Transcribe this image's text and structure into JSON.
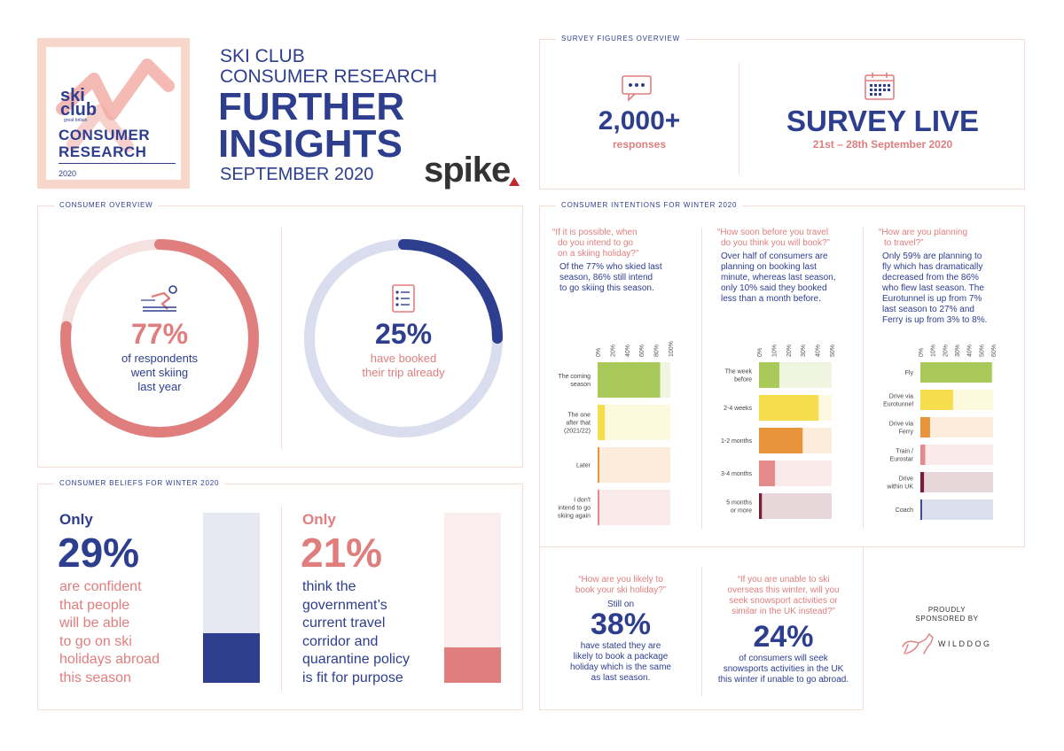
{
  "colors": {
    "navy": "#2d3e8f",
    "coral": "#e07e7e",
    "peach": "#f7d6cb",
    "light_blue": "#d9dded",
    "light_coral": "#f5e1e0",
    "green": "#a9c95a",
    "yellow": "#f6dd4d",
    "orange": "#e8943a",
    "pink": "#e48a8a",
    "maroon": "#7a1f36",
    "blue_bar": "#3a4b9c"
  },
  "logo": {
    "word1": "ski",
    "word2": "club",
    "word3": "great britain",
    "line1": "CONSUMER",
    "line2": "RESEARCH",
    "year": "2020"
  },
  "header": {
    "line1": "SKI CLUB",
    "line2": "CONSUMER RESEARCH",
    "title1": "FURTHER",
    "title2": "INSIGHTS",
    "date": "SEPTEMBER 2020",
    "brand": "spike"
  },
  "survey": {
    "label": "SURVEY FIGURES OVERVIEW",
    "responses_value": "2,000+",
    "responses_label": "responses",
    "live_title": "SURVEY LIVE",
    "live_dates": "21st – 28th September 2020"
  },
  "overview": {
    "label": "CONSUMER OVERVIEW",
    "stat1_value": "77%",
    "stat1_text1": "of respondents",
    "stat1_text2": "went skiing",
    "stat1_text3": "last year",
    "stat2_value": "25%",
    "stat2_text1": "have booked",
    "stat2_text2": "their trip already"
  },
  "beliefs": {
    "label": "CONSUMER BELIEFS FOR WINTER 2020",
    "b1_only": "Only",
    "b1_value": "29%",
    "b1_lines": [
      "are confident",
      "that people",
      "will be able",
      "to go on ski",
      "holidays abroad",
      "this season"
    ],
    "b2_only": "Only",
    "b2_value": "21%",
    "b2_lines": [
      "think the",
      "government’s",
      "current travel",
      "corridor and",
      "quarantine policy",
      "is fit for purpose"
    ]
  },
  "intentions": {
    "label": "CONSUMER INTENTIONS FOR WINTER 2020",
    "q1": [
      "“If it is possible, when",
      "do you intend to go",
      "on a skiing holiday?”"
    ],
    "a1": [
      "Of the 77% who skied last",
      "season, 86% still intend",
      "to go skiing this season."
    ],
    "q2": [
      "“How soon before you travel",
      "do you think you will book?”"
    ],
    "a2": [
      "Over half of consumers are",
      "planning on booking last",
      "minute, whereas last season,",
      "only 10% said they booked",
      "less than a month before."
    ],
    "q3": [
      "“How are you planning",
      "to travel?”"
    ],
    "a3": [
      "Only 59% are planning to",
      "fly which has dramatically",
      "decreased from the 86%",
      "who flew last season. The",
      "Eurotunnel is up from 7%",
      "last season to 27% and",
      "Ferry is up from 3% to 8%."
    ]
  },
  "bottom": {
    "q4": [
      "“How are you likely to",
      "book your ski holiday?”"
    ],
    "still_on": "Still on",
    "value4": "38%",
    "a4": [
      "have stated they are",
      "likely to book a package",
      "holiday which is the same",
      "as last season."
    ],
    "q5": [
      "“If you are unable to ski",
      "overseas this winter, will you",
      "seek snowsport activities or",
      "similar in the UK instead?”"
    ],
    "value5": "24%",
    "a5": [
      "of consumers will seek",
      "snowsports activities in the UK",
      "this winter if unable to go abroad."
    ]
  },
  "sponsor": {
    "line1": "PROUDLY",
    "line2": "SPONSORED BY",
    "name": "WILDDOG"
  },
  "chart_data": [
    {
      "type": "bar",
      "orientation": "horizontal",
      "categories": [
        [
          "The coming",
          "season"
        ],
        [
          "The one",
          "after that",
          "(2021/22)"
        ],
        [
          "Later"
        ],
        [
          "I don't",
          "intend to go",
          "skiing again"
        ]
      ],
      "values": [
        86,
        10,
        2,
        0
      ],
      "xlim": [
        0,
        100
      ],
      "ticks": [
        "0%",
        "20%",
        "40%",
        "60%",
        "80%",
        "100%"
      ],
      "colors": [
        "#a9c95a",
        "#f6dd4d",
        "#e8943a",
        "#e48a8a"
      ]
    },
    {
      "type": "bar",
      "orientation": "horizontal",
      "categories": [
        [
          "The week",
          "before"
        ],
        [
          "2-4 weeks"
        ],
        [
          "1-2 months"
        ],
        [
          "3-4 months"
        ],
        [
          "5 months",
          "or more"
        ]
      ],
      "values": [
        14,
        41,
        30,
        11,
        2
      ],
      "xlim": [
        0,
        50
      ],
      "ticks": [
        "0%",
        "10%",
        "20%",
        "30%",
        "40%",
        "50%"
      ],
      "colors": [
        "#a9c95a",
        "#f6dd4d",
        "#e8943a",
        "#e48a8a",
        "#7a1f36"
      ]
    },
    {
      "type": "bar",
      "orientation": "horizontal",
      "categories": [
        [
          "Fly"
        ],
        [
          "Drive via",
          "Eurotunnel"
        ],
        [
          "Drive via",
          "Ferry"
        ],
        [
          "Train /",
          "Eurostar"
        ],
        [
          "Drive",
          "within UK"
        ],
        [
          "Coach"
        ]
      ],
      "values": [
        59,
        27,
        8,
        4,
        3,
        1
      ],
      "xlim": [
        0,
        60
      ],
      "ticks": [
        "0%",
        "10%",
        "20%",
        "30%",
        "40%",
        "50%",
        "60%"
      ],
      "colors": [
        "#a9c95a",
        "#f6dd4d",
        "#e8943a",
        "#e48a8a",
        "#7a1f36",
        "#3a4b9c"
      ]
    }
  ]
}
